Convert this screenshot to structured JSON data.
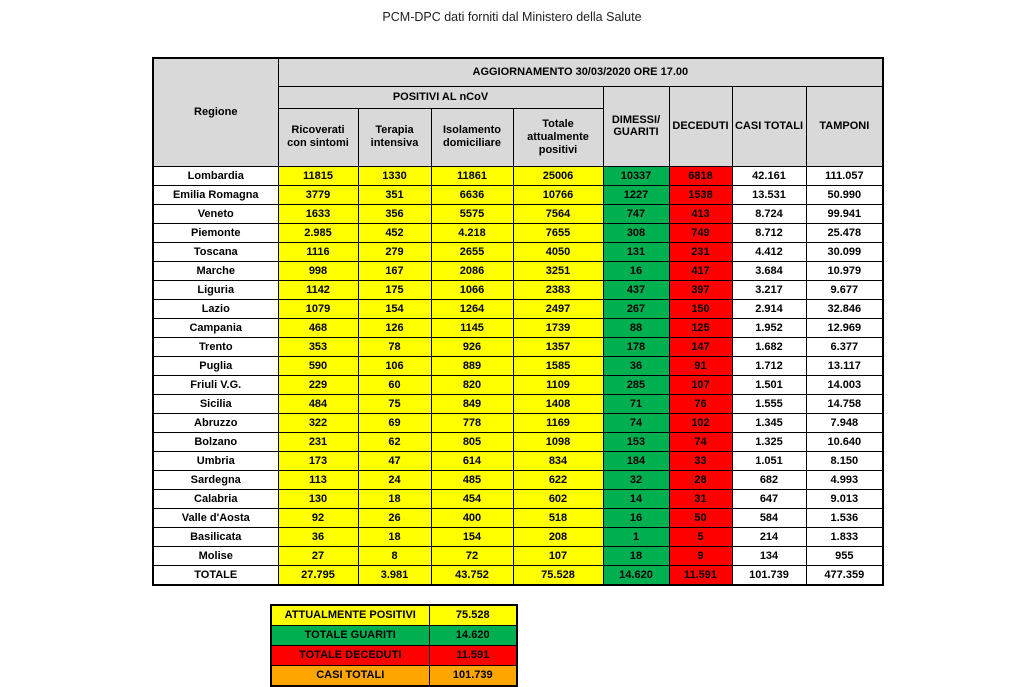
{
  "page_title": "PCM-DPC dati forniti dal Ministero della Salute",
  "colors": {
    "yellow": "#FFFF00",
    "green": "#00B050",
    "red": "#FF0000",
    "orange": "#FFA500",
    "header_gray": "#D9D9D9"
  },
  "chart_data": {
    "type": "table",
    "title": "AGGIORNAMENTO 30/03/2020 ORE 17.00",
    "group_header": "POSITIVI AL nCoV",
    "headers": {
      "region": "Regione",
      "sub": [
        "Ricoverati con sintomi",
        "Terapia intensiva",
        "Isolamento domiciliare",
        "Totale attualmente positivi"
      ],
      "dimessi": "DIMESSI/ GUARITI",
      "deceduti": "DECEDUTI",
      "casi_totali": "CASI TOTALI",
      "tamponi": "TAMPONI"
    },
    "rows": [
      [
        "Lombardia",
        "11815",
        "1330",
        "11861",
        "25006",
        "10337",
        "6818",
        "42.161",
        "111.057"
      ],
      [
        "Emilia Romagna",
        "3779",
        "351",
        "6636",
        "10766",
        "1227",
        "1538",
        "13.531",
        "50.990"
      ],
      [
        "Veneto",
        "1633",
        "356",
        "5575",
        "7564",
        "747",
        "413",
        "8.724",
        "99.941"
      ],
      [
        "Piemonte",
        "2.985",
        "452",
        "4.218",
        "7655",
        "308",
        "749",
        "8.712",
        "25.478"
      ],
      [
        "Toscana",
        "1116",
        "279",
        "2655",
        "4050",
        "131",
        "231",
        "4.412",
        "30.099"
      ],
      [
        "Marche",
        "998",
        "167",
        "2086",
        "3251",
        "16",
        "417",
        "3.684",
        "10.979"
      ],
      [
        "Liguria",
        "1142",
        "175",
        "1066",
        "2383",
        "437",
        "397",
        "3.217",
        "9.677"
      ],
      [
        "Lazio",
        "1079",
        "154",
        "1264",
        "2497",
        "267",
        "150",
        "2.914",
        "32.846"
      ],
      [
        "Campania",
        "468",
        "126",
        "1145",
        "1739",
        "88",
        "125",
        "1.952",
        "12.969"
      ],
      [
        "Trento",
        "353",
        "78",
        "926",
        "1357",
        "178",
        "147",
        "1.682",
        "6.377"
      ],
      [
        "Puglia",
        "590",
        "106",
        "889",
        "1585",
        "36",
        "91",
        "1.712",
        "13.117"
      ],
      [
        "Friuli V.G.",
        "229",
        "60",
        "820",
        "1109",
        "285",
        "107",
        "1.501",
        "14.003"
      ],
      [
        "Sicilia",
        "484",
        "75",
        "849",
        "1408",
        "71",
        "76",
        "1.555",
        "14.758"
      ],
      [
        "Abruzzo",
        "322",
        "69",
        "778",
        "1169",
        "74",
        "102",
        "1.345",
        "7.948"
      ],
      [
        "Bolzano",
        "231",
        "62",
        "805",
        "1098",
        "153",
        "74",
        "1.325",
        "10.640"
      ],
      [
        "Umbria",
        "173",
        "47",
        "614",
        "834",
        "184",
        "33",
        "1.051",
        "8.150"
      ],
      [
        "Sardegna",
        "113",
        "24",
        "485",
        "622",
        "32",
        "28",
        "682",
        "4.993"
      ],
      [
        "Calabria",
        "130",
        "18",
        "454",
        "602",
        "14",
        "31",
        "647",
        "9.013"
      ],
      [
        "Valle d'Aosta",
        "92",
        "26",
        "400",
        "518",
        "16",
        "50",
        "584",
        "1.536"
      ],
      [
        "Basilicata",
        "36",
        "18",
        "154",
        "208",
        "1",
        "5",
        "214",
        "1.833"
      ],
      [
        "Molise",
        "27",
        "8",
        "72",
        "107",
        "18",
        "9",
        "134",
        "955"
      ]
    ],
    "total_row": [
      "TOTALE",
      "27.795",
      "3.981",
      "43.752",
      "75.528",
      "14.620",
      "11.591",
      "101.739",
      "477.359"
    ],
    "legend": [
      {
        "label": "ATTUALMENTE POSITIVI",
        "value": "75.528",
        "color": "yellow"
      },
      {
        "label": "TOTALE GUARITI",
        "value": "14.620",
        "color": "green"
      },
      {
        "label": "TOTALE DECEDUTI",
        "value": "11.591",
        "color": "red"
      },
      {
        "label": "CASI TOTALI",
        "value": "101.739",
        "color": "orange"
      }
    ]
  }
}
